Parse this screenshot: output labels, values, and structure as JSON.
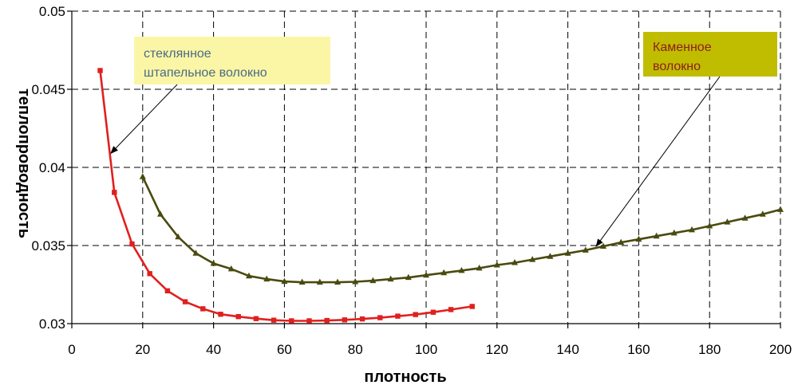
{
  "chart_data": {
    "type": "line",
    "xlabel": "плотность",
    "ylabel": "теплопроводность",
    "xlim": [
      0,
      200
    ],
    "ylim": [
      0.03,
      0.05
    ],
    "x_ticks": [
      "0",
      "20",
      "40",
      "60",
      "80",
      "100",
      "120",
      "140",
      "160",
      "180",
      "200"
    ],
    "y_ticks": [
      "0.03",
      "0.035",
      "0.04",
      "0.045",
      "0.05"
    ],
    "grid": true,
    "series": [
      {
        "name": "стеклянное штапельное волокно",
        "color": "#e0201e",
        "marker": "square",
        "x": [
          8,
          12,
          17,
          22,
          27,
          32,
          37,
          42,
          47,
          52,
          57,
          62,
          67,
          72,
          77,
          82,
          87,
          92,
          97,
          102,
          107,
          113
        ],
        "y": [
          0.0462,
          0.0384,
          0.0351,
          0.0332,
          0.0321,
          0.0314,
          0.03095,
          0.0306,
          0.03045,
          0.03032,
          0.03022,
          0.03018,
          0.03018,
          0.0302,
          0.03024,
          0.0303,
          0.03038,
          0.03048,
          0.03058,
          0.03073,
          0.0309,
          0.0311
        ]
      },
      {
        "name": "Каменное волокно",
        "color": "#4a4a10",
        "marker": "triangle",
        "x": [
          20,
          25,
          30,
          35,
          40,
          45,
          50,
          55,
          60,
          65,
          70,
          75,
          80,
          85,
          90,
          95,
          100,
          105,
          110,
          115,
          120,
          125,
          130,
          135,
          140,
          145,
          150,
          155,
          160,
          165,
          170,
          175,
          180,
          185,
          190,
          195,
          200
        ],
        "y": [
          0.0394,
          0.037,
          0.03555,
          0.0345,
          0.03385,
          0.0335,
          0.03305,
          0.03285,
          0.0327,
          0.03265,
          0.03265,
          0.03265,
          0.03268,
          0.03275,
          0.03285,
          0.03295,
          0.0331,
          0.03325,
          0.0334,
          0.03355,
          0.03375,
          0.0339,
          0.0341,
          0.0343,
          0.0345,
          0.0347,
          0.03495,
          0.0352,
          0.0354,
          0.0356,
          0.0358,
          0.036,
          0.03625,
          0.0365,
          0.03675,
          0.037,
          0.0373
        ]
      }
    ],
    "annotations": [
      {
        "lines": [
          "стеклянное",
          "штапельное волокно"
        ],
        "box_color": "#fbf6a6",
        "text_color": "#4a6a86",
        "points_to": {
          "x": 11,
          "y": 0.0409
        }
      },
      {
        "lines": [
          "Каменное",
          "волокно"
        ],
        "box_color": "#c0bc00",
        "text_color": "#8b1e1e",
        "points_to": {
          "x": 148,
          "y": 0.03495
        }
      }
    ]
  }
}
